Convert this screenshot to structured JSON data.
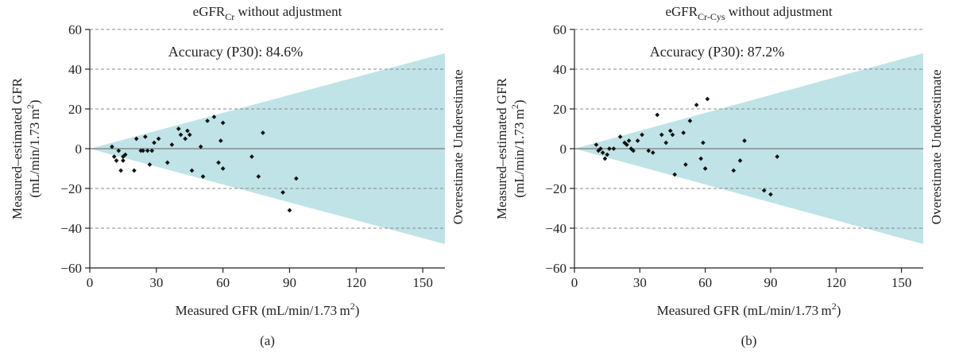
{
  "colors": {
    "band": "#bfe3e6",
    "grid": "#8a8a8a",
    "zero": "#8a8a8a",
    "point": "#111111",
    "axis": "#222222"
  },
  "side_labels": {
    "upper": "Underestimate",
    "lower": "Overestimate"
  },
  "chart_data": [
    {
      "type": "scatter",
      "panel_label": "(a)",
      "title": {
        "prefix": "eGFR",
        "subscript": "Cr",
        "suffix": " without adjustment"
      },
      "annotation": "Accuracy (P30): 84.6%",
      "xlabel": {
        "text": "Measured GFR (mL/min/1.73 m",
        "sup": "2",
        "close": ")"
      },
      "ylabel": {
        "line1": "Measured–estimated GFR",
        "line2": "(mL/min/1.73 m",
        "sup": "2",
        "close": ")"
      },
      "xlim": [
        0,
        160
      ],
      "ylim": [
        -60,
        60
      ],
      "xticks": [
        0,
        30,
        60,
        90,
        120,
        150
      ],
      "yticks": [
        -60,
        -40,
        -20,
        0,
        20,
        40,
        60
      ],
      "ytick_labels": [
        "−60",
        "−40",
        "−20",
        "0",
        "20",
        "40",
        "60"
      ],
      "dashed_grid_y": [
        -40,
        -20,
        20,
        40,
        60
      ],
      "band_slope": 0.3,
      "points": [
        [
          10,
          1
        ],
        [
          11,
          -4
        ],
        [
          12,
          -6
        ],
        [
          13,
          -1
        ],
        [
          14,
          -11
        ],
        [
          15,
          -4
        ],
        [
          15,
          -6
        ],
        [
          16,
          -3
        ],
        [
          20,
          -11
        ],
        [
          21,
          5
        ],
        [
          23,
          -1
        ],
        [
          24,
          -1
        ],
        [
          25,
          6
        ],
        [
          26,
          -1
        ],
        [
          27,
          -8
        ],
        [
          28,
          -1
        ],
        [
          29,
          3
        ],
        [
          31,
          5
        ],
        [
          35,
          -7
        ],
        [
          37,
          2
        ],
        [
          40,
          10
        ],
        [
          41,
          7
        ],
        [
          43,
          5
        ],
        [
          44,
          9
        ],
        [
          45,
          7
        ],
        [
          46,
          -11
        ],
        [
          50,
          1
        ],
        [
          51,
          -14
        ],
        [
          53,
          14
        ],
        [
          56,
          16
        ],
        [
          58,
          -7
        ],
        [
          59,
          4
        ],
        [
          60,
          -10
        ],
        [
          60,
          13
        ],
        [
          73,
          -4
        ],
        [
          76,
          -14
        ],
        [
          78,
          8
        ],
        [
          87,
          -22
        ],
        [
          90,
          -31
        ],
        [
          93,
          -15
        ]
      ]
    },
    {
      "type": "scatter",
      "panel_label": "(b)",
      "title": {
        "prefix": "eGFR",
        "subscript": "Cr-Cys",
        "suffix": " without adjustment"
      },
      "annotation": "Accuracy (P30): 87.2%",
      "xlabel": {
        "text": "Measured GFR (mL/min/1.73 m",
        "sup": "2",
        "close": ")"
      },
      "ylabel": {
        "line1": "Measured–estimated GFR",
        "line2": "(mL/min/1.73 m",
        "sup": "2",
        "close": ")"
      },
      "xlim": [
        0,
        160
      ],
      "ylim": [
        -60,
        60
      ],
      "xticks": [
        0,
        30,
        60,
        90,
        120,
        150
      ],
      "yticks": [
        -60,
        -40,
        -20,
        0,
        20,
        40,
        60
      ],
      "ytick_labels": [
        "−60",
        "−40",
        "−20",
        "0",
        "20",
        "40",
        "60"
      ],
      "dashed_grid_y": [
        -40,
        -20,
        20,
        40,
        60
      ],
      "band_slope": 0.3,
      "points": [
        [
          10,
          2
        ],
        [
          11,
          -1
        ],
        [
          12,
          0
        ],
        [
          13,
          -2
        ],
        [
          14,
          -5
        ],
        [
          15,
          -3
        ],
        [
          16,
          0
        ],
        [
          18,
          0
        ],
        [
          21,
          6
        ],
        [
          23,
          3
        ],
        [
          24,
          2
        ],
        [
          25,
          4
        ],
        [
          26,
          0
        ],
        [
          27,
          -1
        ],
        [
          29,
          4
        ],
        [
          31,
          7
        ],
        [
          34,
          -1
        ],
        [
          36,
          -2
        ],
        [
          38,
          17
        ],
        [
          40,
          7
        ],
        [
          42,
          3
        ],
        [
          44,
          9
        ],
        [
          45,
          7
        ],
        [
          46,
          -13
        ],
        [
          50,
          8
        ],
        [
          51,
          -8
        ],
        [
          53,
          14
        ],
        [
          56,
          22
        ],
        [
          58,
          -5
        ],
        [
          59,
          3
        ],
        [
          60,
          -10
        ],
        [
          61,
          25
        ],
        [
          73,
          -11
        ],
        [
          76,
          -6
        ],
        [
          78,
          4
        ],
        [
          87,
          -21
        ],
        [
          90,
          -23
        ],
        [
          93,
          -4
        ]
      ]
    }
  ]
}
